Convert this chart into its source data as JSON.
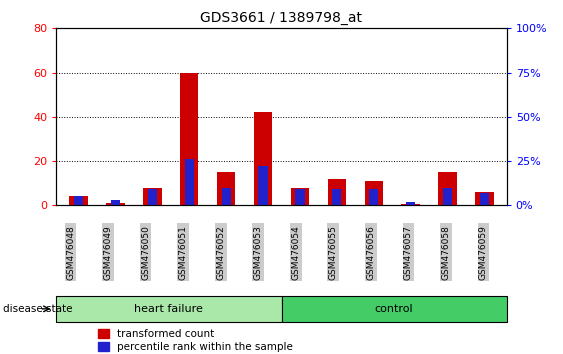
{
  "title": "GDS3661 / 1389798_at",
  "samples": [
    "GSM476048",
    "GSM476049",
    "GSM476050",
    "GSM476051",
    "GSM476052",
    "GSM476053",
    "GSM476054",
    "GSM476055",
    "GSM476056",
    "GSM476057",
    "GSM476058",
    "GSM476059"
  ],
  "red_values": [
    4,
    1,
    8,
    60,
    15,
    42,
    8,
    12,
    11,
    0.5,
    15,
    6
  ],
  "blue_values": [
    5,
    3,
    9,
    26,
    10,
    22,
    9,
    9,
    9,
    2,
    10,
    7
  ],
  "ylim_left": [
    0,
    80
  ],
  "ylim_right": [
    0,
    100
  ],
  "yticks_left": [
    0,
    20,
    40,
    60,
    80
  ],
  "yticks_right": [
    0,
    25,
    50,
    75,
    100
  ],
  "ytick_labels_left": [
    "0",
    "20",
    "40",
    "60",
    "80"
  ],
  "ytick_labels_right": [
    "0%",
    "25%",
    "50%",
    "75%",
    "100%"
  ],
  "red_color": "#CC0000",
  "blue_color": "#2222CC",
  "bar_width": 0.5,
  "blue_bar_width": 0.25,
  "legend_items": [
    "transformed count",
    "percentile rank within the sample"
  ],
  "disease_state_label": "disease state",
  "background_color": "#ffffff",
  "tick_bg_color": "#cccccc",
  "group_box_light": "#aae8aa",
  "group_box_dark": "#44cc66",
  "hf_label": "heart failure",
  "ctrl_label": "control",
  "n_hf": 6,
  "n_ctrl": 6
}
